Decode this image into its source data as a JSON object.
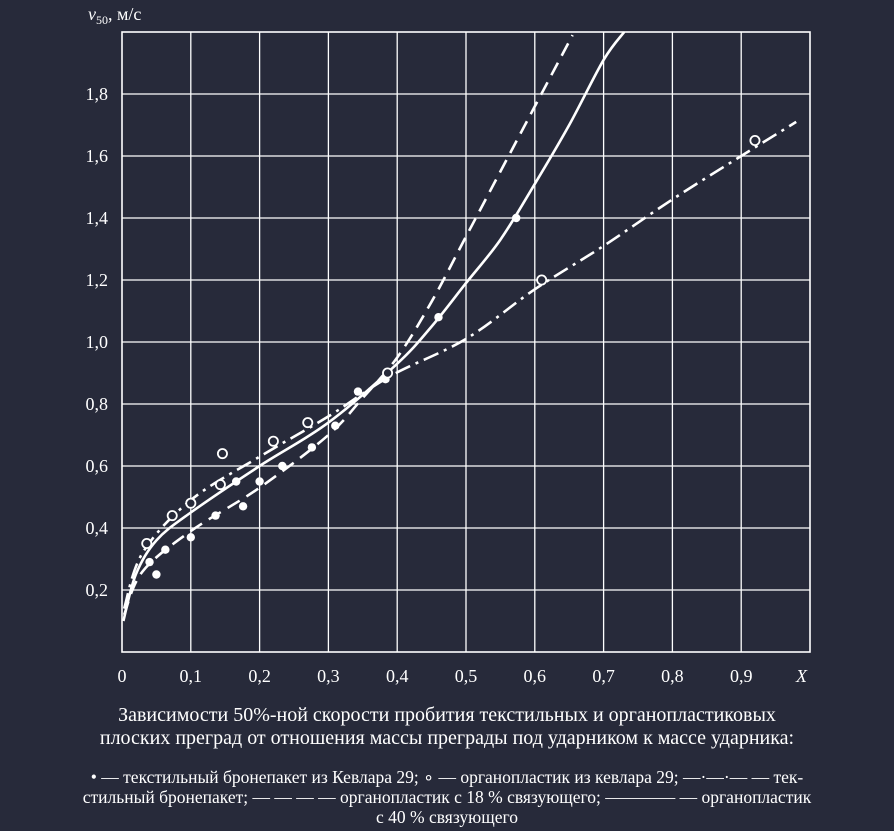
{
  "chart_data": {
    "type": "line",
    "ylabel_prefix": "v",
    "ylabel_sub": "50",
    "ylabel_suffix": ", м/с",
    "xlabel": "X",
    "xlim": [
      0,
      1.0
    ],
    "ylim": [
      0,
      2.0
    ],
    "grid": true,
    "x_ticks": [
      "0",
      "0,1",
      "0,2",
      "0,3",
      "0,4",
      "0,5",
      "0,6",
      "0,7",
      "0,8",
      "0,9"
    ],
    "y_ticks": [
      "0,2",
      "0,4",
      "0,6",
      "0,8",
      "1,0",
      "1,2",
      "1,4",
      "1,6",
      "1,8"
    ],
    "series": [
      {
        "style": "dots-filled",
        "points": [
          [
            0.04,
            0.29
          ],
          [
            0.05,
            0.25
          ],
          [
            0.063,
            0.33
          ],
          [
            0.1,
            0.37
          ],
          [
            0.136,
            0.44
          ],
          [
            0.166,
            0.55
          ],
          [
            0.176,
            0.47
          ],
          [
            0.2,
            0.55
          ],
          [
            0.233,
            0.6
          ],
          [
            0.276,
            0.66
          ],
          [
            0.31,
            0.73
          ],
          [
            0.343,
            0.84
          ],
          [
            0.383,
            0.88
          ],
          [
            0.46,
            1.08
          ],
          [
            0.573,
            1.4
          ]
        ]
      },
      {
        "style": "dots-open",
        "points": [
          [
            0.036,
            0.35
          ],
          [
            0.073,
            0.44
          ],
          [
            0.1,
            0.48
          ],
          [
            0.143,
            0.54
          ],
          [
            0.146,
            0.64
          ],
          [
            0.22,
            0.68
          ],
          [
            0.27,
            0.74
          ],
          [
            0.386,
            0.9
          ],
          [
            0.61,
            1.2
          ],
          [
            0.92,
            1.65
          ]
        ]
      },
      {
        "style": "dash-dot",
        "points": [
          [
            0.003,
            0.14
          ],
          [
            0.03,
            0.32
          ],
          [
            0.1,
            0.49
          ],
          [
            0.2,
            0.63
          ],
          [
            0.3,
            0.76
          ],
          [
            0.39,
            0.89
          ],
          [
            0.5,
            1.01
          ],
          [
            0.6,
            1.17
          ],
          [
            0.7,
            1.31
          ],
          [
            0.8,
            1.46
          ],
          [
            0.9,
            1.6
          ],
          [
            0.98,
            1.71
          ]
        ]
      },
      {
        "style": "dashed",
        "points": [
          [
            0.003,
            0.12
          ],
          [
            0.03,
            0.26
          ],
          [
            0.1,
            0.39
          ],
          [
            0.2,
            0.53
          ],
          [
            0.3,
            0.7
          ],
          [
            0.35,
            0.82
          ],
          [
            0.4,
            0.95
          ],
          [
            0.45,
            1.13
          ],
          [
            0.5,
            1.34
          ],
          [
            0.55,
            1.55
          ],
          [
            0.6,
            1.76
          ],
          [
            0.655,
            1.99
          ]
        ]
      },
      {
        "style": "solid",
        "points": [
          [
            0.002,
            0.1
          ],
          [
            0.02,
            0.25
          ],
          [
            0.05,
            0.36
          ],
          [
            0.1,
            0.45
          ],
          [
            0.2,
            0.6
          ],
          [
            0.3,
            0.74
          ],
          [
            0.4,
            0.93
          ],
          [
            0.45,
            1.05
          ],
          [
            0.5,
            1.19
          ],
          [
            0.55,
            1.33
          ],
          [
            0.6,
            1.51
          ],
          [
            0.65,
            1.7
          ],
          [
            0.7,
            1.91
          ],
          [
            0.73,
            2.0
          ]
        ]
      }
    ]
  },
  "caption": {
    "title_line1": "Зависимости 50%-ной скорости пробития текстильных и органопластиковых",
    "title_line2": "плоских преград от отношения массы преграды под ударником к массе ударника:",
    "legend_line1": "• — текстильный бронепакет из Кевлара 29; ∘ — органопластик из кевлара 29; —·—·— — тек-",
    "legend_line2": "стильный бронепакет; — — — — органопластик с 18 % связующего; ———— — органопластик",
    "legend_line3": "с 40 % связующего"
  },
  "colors": {
    "background": "#272a3a",
    "foreground": "#ffffff"
  }
}
